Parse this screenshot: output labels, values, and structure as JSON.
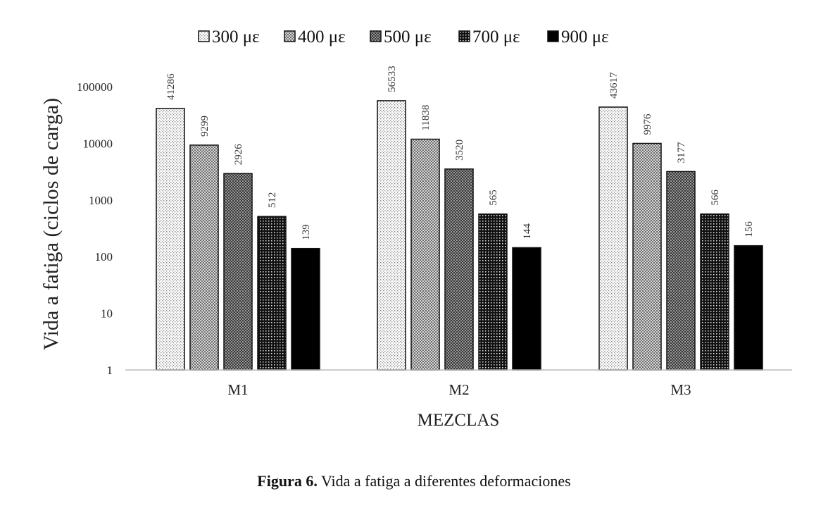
{
  "chart_data": {
    "type": "bar",
    "categories": [
      "M1",
      "M2",
      "M3"
    ],
    "series": [
      {
        "name": "300 με",
        "values": [
          41286,
          56533,
          43617
        ],
        "pattern": "dots-fine"
      },
      {
        "name": "400 με",
        "values": [
          9299,
          11838,
          9976
        ],
        "pattern": "dots-grey"
      },
      {
        "name": "500 με",
        "values": [
          2926,
          3520,
          3177
        ],
        "pattern": "check-dark"
      },
      {
        "name": "700 με",
        "values": [
          512,
          565,
          566
        ],
        "pattern": "dots-black"
      },
      {
        "name": "900 με",
        "values": [
          139,
          144,
          156
        ],
        "pattern": "solid-black"
      }
    ],
    "xlabel": "MEZCLAS",
    "ylabel": "Vida a fatiga (ciclos de carga)",
    "yscale": "log",
    "ylim": [
      1,
      100000
    ],
    "yticks": [
      "1",
      "10",
      "100",
      "1000",
      "10000",
      "100000"
    ],
    "grid": false,
    "legend": "top"
  },
  "caption": {
    "bold": "Figura 6.",
    "text": "Vida a fatiga a diferentes deformaciones"
  }
}
